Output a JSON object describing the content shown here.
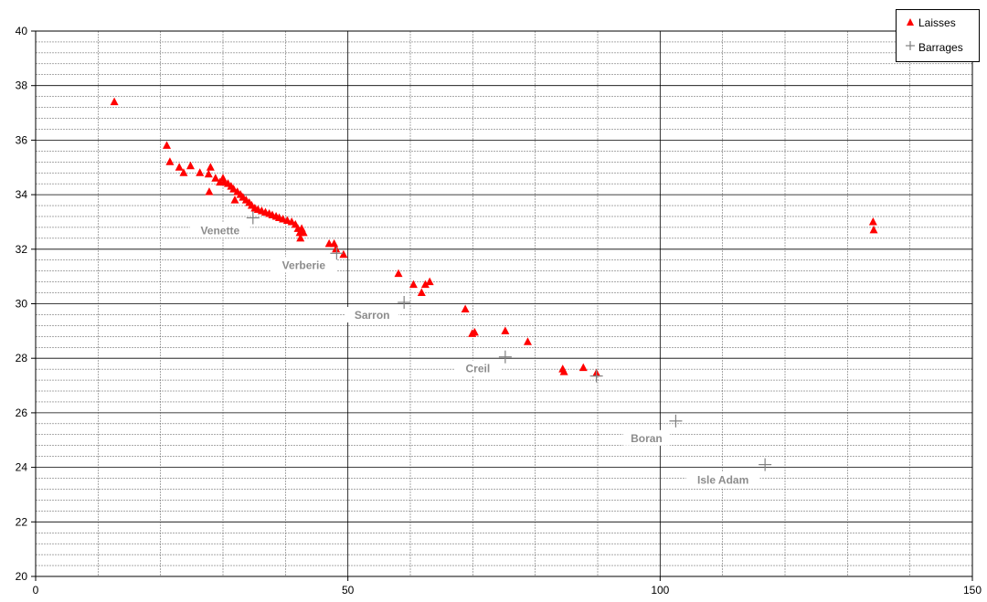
{
  "chart_data": {
    "type": "scatter",
    "xlim": [
      0,
      150
    ],
    "ylim": [
      20,
      40
    ],
    "x_ticks": [
      "0",
      "50",
      "100",
      "150"
    ],
    "y_ticks": [
      "20",
      "22",
      "24",
      "26",
      "28",
      "30",
      "32",
      "34",
      "36",
      "38",
      "40"
    ],
    "grid": true,
    "legend_position": "top-right",
    "series": [
      {
        "name": "Laisses",
        "marker": "triangle",
        "color": "#ff0000",
        "points": [
          [
            12.6,
            37.4
          ],
          [
            21,
            35.8
          ],
          [
            21.5,
            35.2
          ],
          [
            23,
            35
          ],
          [
            23.7,
            34.8
          ],
          [
            24.8,
            35.05
          ],
          [
            26.3,
            34.8
          ],
          [
            27.7,
            34.75
          ],
          [
            28.0,
            35.0
          ],
          [
            27.8,
            34.1
          ],
          [
            28.8,
            34.6
          ],
          [
            29.5,
            34.45
          ],
          [
            30.0,
            34.6
          ],
          [
            30.2,
            34.45
          ],
          [
            30.8,
            34.4
          ],
          [
            31.3,
            34.3
          ],
          [
            31.7,
            34.2
          ],
          [
            31.9,
            33.8
          ],
          [
            32.3,
            34.1
          ],
          [
            32.8,
            34.0
          ],
          [
            33.2,
            33.9
          ],
          [
            33.7,
            33.8
          ],
          [
            34.2,
            33.7
          ],
          [
            34.6,
            33.6
          ],
          [
            35.1,
            33.5
          ],
          [
            35.6,
            33.45
          ],
          [
            36.2,
            33.4
          ],
          [
            36.8,
            33.35
          ],
          [
            37.4,
            33.3
          ],
          [
            37.9,
            33.25
          ],
          [
            38.5,
            33.2
          ],
          [
            39.0,
            33.15
          ],
          [
            39.6,
            33.1
          ],
          [
            40.3,
            33.05
          ],
          [
            41.0,
            33.0
          ],
          [
            41.6,
            32.9
          ],
          [
            42.0,
            32.75
          ],
          [
            42.3,
            32.6
          ],
          [
            42.6,
            32.75
          ],
          [
            42.9,
            32.6
          ],
          [
            42.4,
            32.4
          ],
          [
            47.0,
            32.2
          ],
          [
            47.8,
            32.2
          ],
          [
            48.1,
            32.0
          ],
          [
            49.3,
            31.8
          ],
          [
            58.1,
            31.1
          ],
          [
            60.5,
            30.7
          ],
          [
            61.8,
            30.4
          ],
          [
            62.4,
            30.7
          ],
          [
            63.1,
            30.8
          ],
          [
            68.8,
            29.8
          ],
          [
            69.9,
            28.9
          ],
          [
            70.3,
            28.95
          ],
          [
            75.2,
            29.0
          ],
          [
            78.8,
            28.6
          ],
          [
            84.4,
            27.6
          ],
          [
            84.6,
            27.5
          ],
          [
            87.7,
            27.65
          ],
          [
            89.8,
            27.45
          ],
          [
            134.1,
            33.0
          ],
          [
            134.2,
            32.7
          ]
        ]
      },
      {
        "name": "Barrages",
        "marker": "plus",
        "color": "#808080",
        "points": [
          [
            34.8,
            33.15
          ],
          [
            48.2,
            31.85
          ],
          [
            59.0,
            30.05
          ],
          [
            75.2,
            28.05
          ],
          [
            89.8,
            27.35
          ],
          [
            102.5,
            25.7
          ],
          [
            116.8,
            24.1
          ]
        ]
      }
    ],
    "annotations": [
      "Venette",
      "Verberie",
      "Sarron",
      "Creil",
      "Boran",
      "Isle Adam"
    ]
  }
}
